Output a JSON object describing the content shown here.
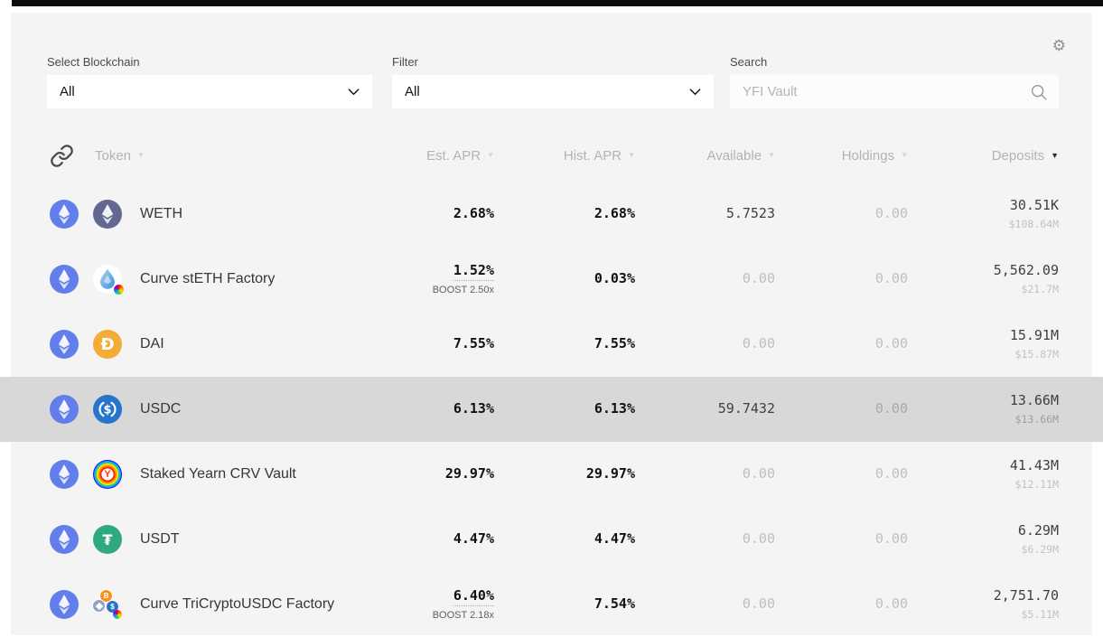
{
  "filters": {
    "blockchain": {
      "label": "Select Blockchain",
      "value": "All"
    },
    "category": {
      "label": "Filter",
      "value": "All"
    },
    "search": {
      "label": "Search",
      "placeholder": "YFI Vault"
    }
  },
  "settings": {
    "icon": "gear-icon"
  },
  "table": {
    "columns": [
      {
        "key": "token",
        "label": "Token",
        "sort": "none"
      },
      {
        "key": "est_apr",
        "label": "Est. APR",
        "sort": "none"
      },
      {
        "key": "hist_apr",
        "label": "Hist. APR",
        "sort": "none"
      },
      {
        "key": "available",
        "label": "Available",
        "sort": "none"
      },
      {
        "key": "holdings",
        "label": "Holdings",
        "sort": "none"
      },
      {
        "key": "deposits",
        "label": "Deposits",
        "sort": "desc"
      }
    ],
    "rows": [
      {
        "name": "WETH",
        "chain": "Ethereum",
        "chain_icon": "ethereum",
        "icon": "weth",
        "est_apr": "2.68%",
        "boost": "",
        "hist_apr": "2.68%",
        "available": "5.7523",
        "available_muted": false,
        "holdings": "0.00",
        "deposits": "30.51K",
        "deposits_usd": "$108.64M",
        "highlight": false
      },
      {
        "name": "Curve stETH Factory",
        "chain": "Ethereum",
        "chain_icon": "ethereum",
        "icon": "curve-steth",
        "est_apr": "1.52%",
        "boost": "BOOST 2.50x",
        "hist_apr": "0.03%",
        "available": "0.00",
        "available_muted": true,
        "holdings": "0.00",
        "deposits": "5,562.09",
        "deposits_usd": "$21.7M",
        "highlight": false
      },
      {
        "name": "DAI",
        "chain": "Ethereum",
        "chain_icon": "ethereum",
        "icon": "dai",
        "est_apr": "7.55%",
        "boost": "",
        "hist_apr": "7.55%",
        "available": "0.00",
        "available_muted": true,
        "holdings": "0.00",
        "deposits": "15.91M",
        "deposits_usd": "$15.87M",
        "highlight": false
      },
      {
        "name": "USDC",
        "chain": "Ethereum",
        "chain_icon": "ethereum",
        "icon": "usdc",
        "est_apr": "6.13%",
        "boost": "",
        "hist_apr": "6.13%",
        "available": "59.7432",
        "available_muted": false,
        "holdings": "0.00",
        "deposits": "13.66M",
        "deposits_usd": "$13.66M",
        "highlight": true
      },
      {
        "name": "Staked Yearn CRV Vault",
        "chain": "Ethereum",
        "chain_icon": "ethereum",
        "icon": "st-ycrv",
        "est_apr": "29.97%",
        "boost": "",
        "hist_apr": "29.97%",
        "available": "0.00",
        "available_muted": true,
        "holdings": "0.00",
        "deposits": "41.43M",
        "deposits_usd": "$12.11M",
        "highlight": false
      },
      {
        "name": "USDT",
        "chain": "Ethereum",
        "chain_icon": "ethereum",
        "icon": "usdt",
        "est_apr": "4.47%",
        "boost": "",
        "hist_apr": "4.47%",
        "available": "0.00",
        "available_muted": true,
        "holdings": "0.00",
        "deposits": "6.29M",
        "deposits_usd": "$6.29M",
        "highlight": false
      },
      {
        "name": "Curve TriCryptoUSDC Factory",
        "chain": "Ethereum",
        "chain_icon": "ethereum",
        "icon": "curve-tricrypto",
        "est_apr": "6.40%",
        "boost": "BOOST 2.18x",
        "hist_apr": "7.54%",
        "available": "0.00",
        "available_muted": true,
        "holdings": "0.00",
        "deposits": "2,751.70",
        "deposits_usd": "$5.11M",
        "highlight": false
      }
    ]
  },
  "colors": {
    "ethereum_chain": "#627EEA",
    "weth": "#62688F",
    "dai": "#F5AC37",
    "usdc": "#2775CA",
    "usdt": "#2EA980",
    "btc": "#F7931A",
    "panel_bg": "#F4F4F4",
    "highlight_row": "#D8D8D8"
  }
}
